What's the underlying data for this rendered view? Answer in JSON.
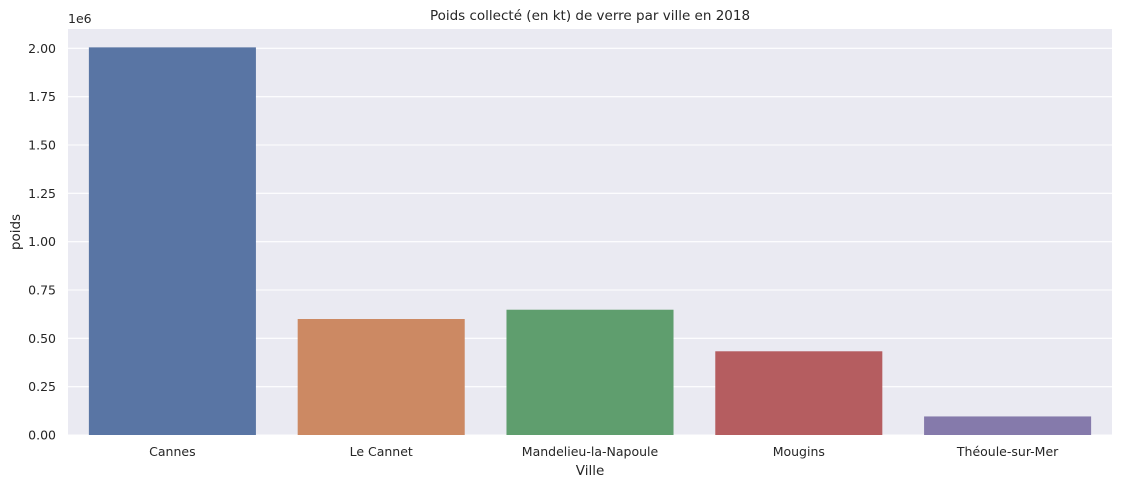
{
  "chart_data": {
    "type": "bar",
    "title": "Poids collecté (en kt) de verre par ville en 2018",
    "xlabel": "Ville",
    "ylabel": "poids",
    "y_offset_label": "1e6",
    "categories": [
      "Cannes",
      "Le Cannet",
      "Mandelieu-la-Napoule",
      "Mougins",
      "Théoule-sur-Mer"
    ],
    "values": [
      2005000,
      600000,
      648000,
      433000,
      96000
    ],
    "ylim": [
      0,
      2100000
    ],
    "yticks": [
      0,
      250000,
      500000,
      750000,
      1000000,
      1250000,
      1500000,
      1750000,
      2000000
    ],
    "ytick_labels": [
      "0.00",
      "0.25",
      "0.50",
      "0.75",
      "1.00",
      "1.25",
      "1.50",
      "1.75",
      "2.00"
    ],
    "colors": [
      "#5975a4",
      "#cc8963",
      "#5f9e6e",
      "#b55d60",
      "#857aab"
    ],
    "background": "#eaeaf2",
    "grid": true,
    "grid_color": "#ffffff"
  }
}
